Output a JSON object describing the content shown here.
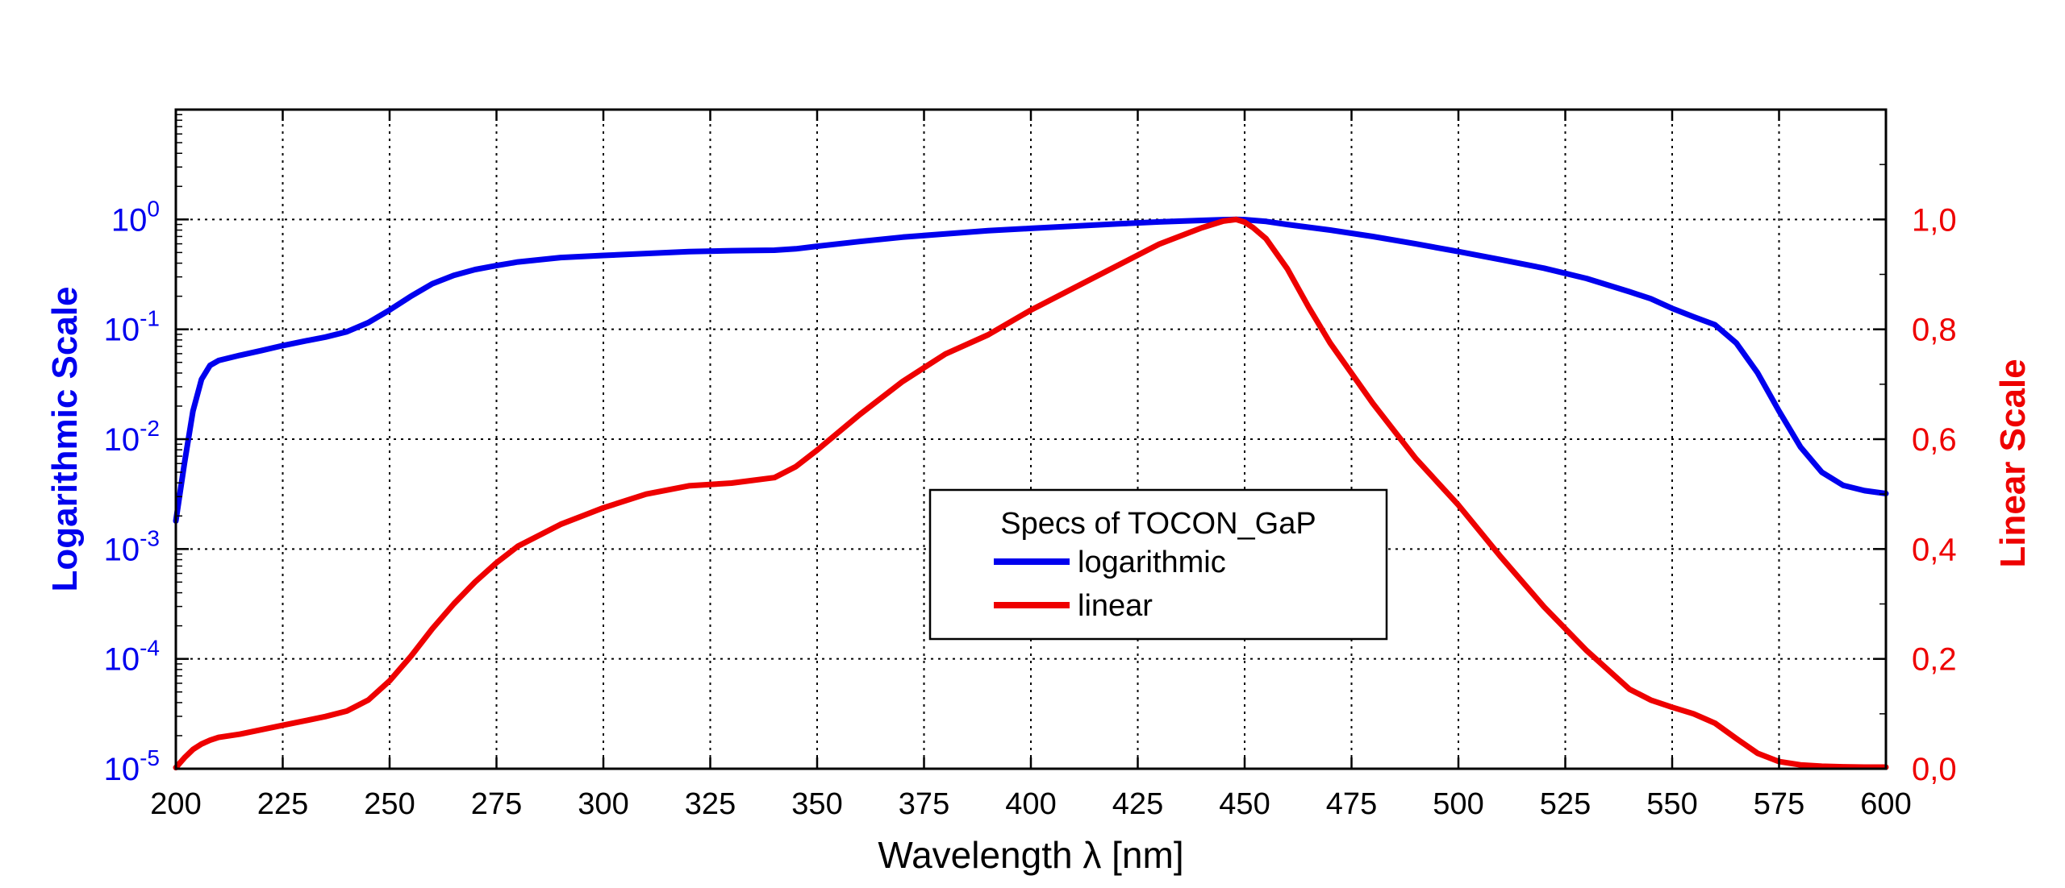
{
  "chart_data": {
    "type": "line",
    "xlabel": "Wavelength λ [nm]",
    "ylabel_left": "Logarithmic Scale",
    "ylabel_right": "Linear Scale",
    "xlim": [
      200,
      600
    ],
    "x_ticks": [
      200,
      225,
      250,
      275,
      300,
      325,
      350,
      375,
      400,
      425,
      450,
      475,
      500,
      525,
      550,
      575,
      600
    ],
    "y_left": {
      "scale": "log",
      "lim": [
        1e-05,
        10
      ],
      "tick_exponents": [
        "0",
        "-1",
        "-2",
        "-3",
        "-4",
        "-5"
      ],
      "tick_base": "10",
      "color": "#0000ee"
    },
    "y_right": {
      "scale": "linear",
      "lim": [
        0,
        1.2
      ],
      "ticks": [
        0,
        0.2,
        0.4,
        0.6,
        0.8,
        1.0
      ],
      "tick_labels": [
        "0,0",
        "0,2",
        "0,4",
        "0,6",
        "0,8",
        "1,0"
      ],
      "color": "#ee0000"
    },
    "grid": true,
    "legend": {
      "title": "Specs of TOCON_GaP",
      "placement": "center",
      "entries": [
        "logarithmic",
        "linear"
      ]
    },
    "series": [
      {
        "name": "logarithmic",
        "axis": "left",
        "color": "#0000ee",
        "x": [
          200,
          202,
          204,
          206,
          208,
          210,
          215,
          220,
          225,
          230,
          235,
          240,
          245,
          250,
          255,
          260,
          265,
          270,
          275,
          280,
          290,
          300,
          310,
          320,
          330,
          340,
          345,
          350,
          360,
          370,
          380,
          390,
          400,
          410,
          420,
          430,
          440,
          445,
          448,
          450,
          455,
          460,
          470,
          480,
          490,
          500,
          510,
          520,
          530,
          540,
          545,
          550,
          555,
          560,
          565,
          570,
          575,
          580,
          585,
          590,
          595,
          600
        ],
        "y": [
          0.0018,
          0.006,
          0.018,
          0.035,
          0.047,
          0.052,
          0.058,
          0.064,
          0.071,
          0.078,
          0.085,
          0.095,
          0.115,
          0.15,
          0.2,
          0.26,
          0.31,
          0.35,
          0.38,
          0.41,
          0.45,
          0.47,
          0.49,
          0.51,
          0.52,
          0.525,
          0.54,
          0.57,
          0.63,
          0.69,
          0.74,
          0.79,
          0.83,
          0.87,
          0.91,
          0.95,
          0.98,
          0.995,
          1.0,
          0.995,
          0.96,
          0.9,
          0.8,
          0.7,
          0.6,
          0.51,
          0.43,
          0.36,
          0.29,
          0.22,
          0.19,
          0.155,
          0.13,
          0.11,
          0.075,
          0.04,
          0.018,
          0.0085,
          0.005,
          0.0038,
          0.0034,
          0.0032
        ]
      },
      {
        "name": "linear",
        "axis": "right",
        "color": "#ee0000",
        "x": [
          200,
          202,
          204,
          206,
          208,
          210,
          215,
          220,
          225,
          230,
          235,
          240,
          245,
          250,
          255,
          260,
          265,
          270,
          275,
          280,
          290,
          300,
          310,
          320,
          330,
          340,
          345,
          350,
          360,
          370,
          380,
          390,
          400,
          410,
          420,
          430,
          440,
          445,
          448,
          450,
          452,
          455,
          460,
          465,
          470,
          480,
          490,
          500,
          510,
          520,
          530,
          540,
          545,
          550,
          555,
          560,
          565,
          570,
          575,
          580,
          585,
          590,
          595,
          600
        ],
        "y": [
          0.002,
          0.02,
          0.035,
          0.045,
          0.052,
          0.057,
          0.063,
          0.071,
          0.079,
          0.087,
          0.095,
          0.105,
          0.125,
          0.16,
          0.205,
          0.255,
          0.3,
          0.34,
          0.375,
          0.405,
          0.445,
          0.475,
          0.5,
          0.515,
          0.52,
          0.53,
          0.55,
          0.58,
          0.645,
          0.705,
          0.755,
          0.79,
          0.835,
          0.875,
          0.915,
          0.955,
          0.985,
          0.997,
          1.0,
          0.995,
          0.985,
          0.965,
          0.91,
          0.84,
          0.775,
          0.665,
          0.565,
          0.48,
          0.385,
          0.295,
          0.215,
          0.145,
          0.125,
          0.112,
          0.1,
          0.083,
          0.055,
          0.028,
          0.013,
          0.007,
          0.0045,
          0.0035,
          0.003,
          0.003
        ]
      }
    ]
  }
}
